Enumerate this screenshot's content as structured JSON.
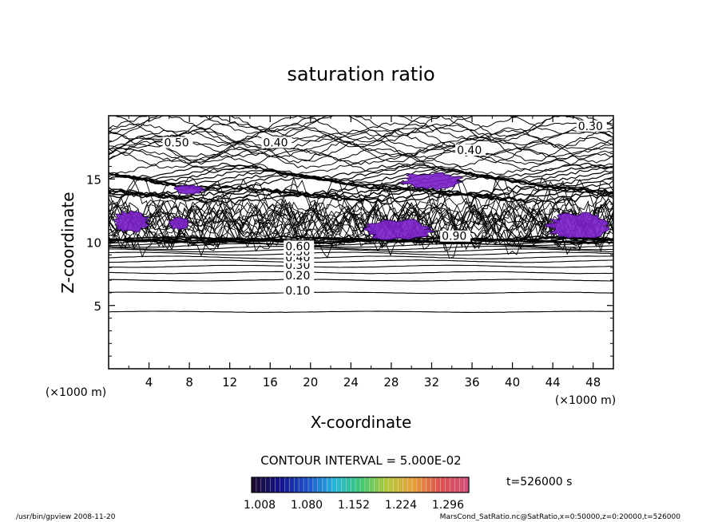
{
  "chart_data": {
    "type": "contour",
    "title": "saturation ratio",
    "xlabel": "X-coordinate",
    "ylabel": "Z-coordinate",
    "x_unit": "(×1000 m)",
    "y_unit": "(×1000 m)",
    "xlim": [
      0,
      50
    ],
    "ylim": [
      0,
      20
    ],
    "x_ticks": [
      4,
      8,
      12,
      16,
      20,
      24,
      28,
      32,
      36,
      40,
      44,
      48
    ],
    "y_ticks": [
      5,
      10,
      15
    ],
    "contour_interval_label": "CONTOUR INTERVAL = 5.000E-02",
    "contour_levels_labeled": [
      {
        "label": "0.10",
        "z": 6.0,
        "x": 17.5
      },
      {
        "label": "0.20",
        "z": 7.2,
        "x": 17.5
      },
      {
        "label": "0.30",
        "z": 8.0,
        "x": 17.5
      },
      {
        "label": "0.40",
        "z": 8.6,
        "x": 17.5
      },
      {
        "label": "0.50",
        "z": 9.1,
        "x": 17.5
      },
      {
        "label": "0.60",
        "z": 9.5,
        "x": 17.5
      },
      {
        "label": "0.50",
        "z": 17.7,
        "x": 5.5
      },
      {
        "label": "0.40",
        "z": 17.7,
        "x": 15.3
      },
      {
        "label": "0.30",
        "z": 19.0,
        "x": 46.5
      },
      {
        "label": "0.40",
        "z": 17.1,
        "x": 34.5
      },
      {
        "label": "0.90",
        "z": 10.3,
        "x": 33.0
      }
    ],
    "supersaturated_regions": [
      {
        "x": [
          6.5,
          9.5
        ],
        "z": [
          13.8,
          14.5
        ]
      },
      {
        "x": [
          29.0,
          35.0
        ],
        "z": [
          14.2,
          15.5
        ]
      },
      {
        "x": [
          43.5,
          49.5
        ],
        "z": [
          10.2,
          12.3
        ]
      },
      {
        "x": [
          25.0,
          32.0
        ],
        "z": [
          10.2,
          11.8
        ]
      },
      {
        "x": [
          0.5,
          4.0
        ],
        "z": [
          10.8,
          12.5
        ]
      },
      {
        "x": [
          6.0,
          8.0
        ],
        "z": [
          11.0,
          12.0
        ]
      }
    ],
    "colorbar": {
      "ticks": [
        "1.008",
        "1.080",
        "1.152",
        "1.224",
        "1.296"
      ],
      "min": 1.008,
      "max": 1.34,
      "colors": [
        "#1a0a2e",
        "#14148c",
        "#1e50c8",
        "#28b4dc",
        "#3cc878",
        "#b4c83c",
        "#e6a03c",
        "#dc5050",
        "#d25078"
      ]
    },
    "time_label": "t=526000 s"
  },
  "footer": {
    "left": "/usr/bin/gpview   2008-11-20",
    "right": "MarsCond_SatRatio.nc@SatRatio,x=0:50000,z=0:20000,t=526000"
  }
}
